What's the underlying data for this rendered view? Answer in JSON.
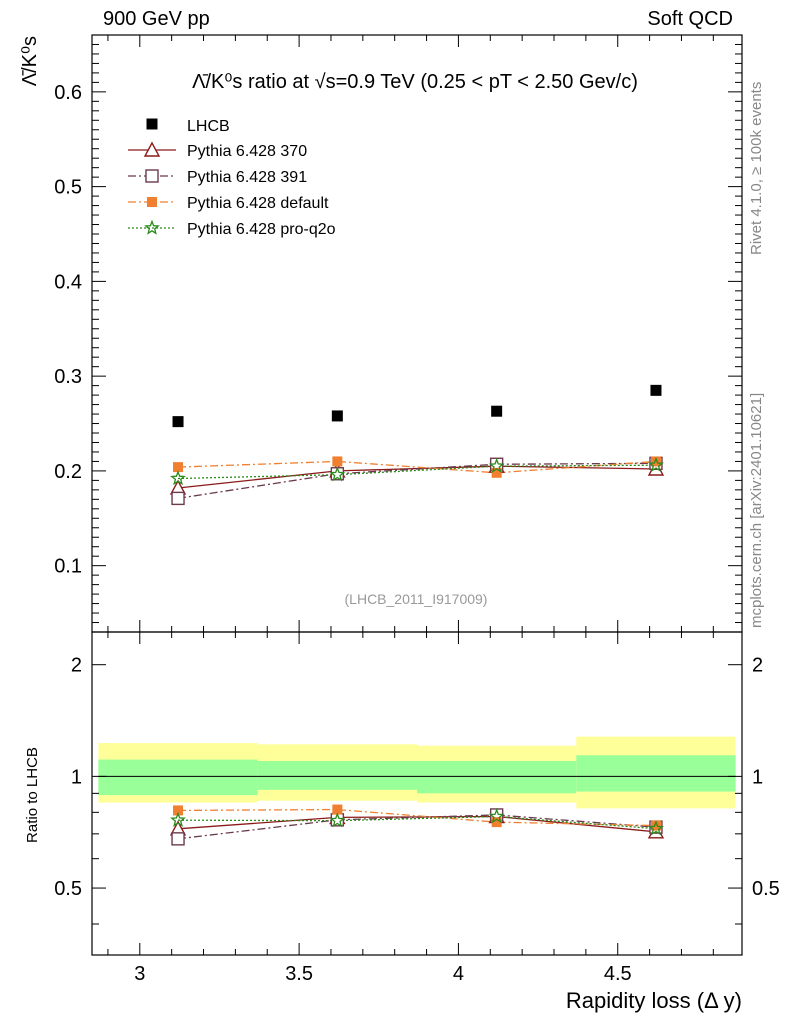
{
  "header": {
    "left": "900 GeV pp",
    "right": "Soft QCD"
  },
  "side_labels": {
    "rivet": "Rivet 4.1.0, ≥ 100k events",
    "mcplots": "mcplots.cern.ch [arXiv:2401.10621]"
  },
  "chart_data": {
    "type": "scatter",
    "title": "Λ̄/K⁰s ratio at √s=0.9 TeV (0.25 < pT < 2.50 Gev/c)",
    "analysis_tag": "(LHCB_2011_I917009)",
    "xlabel": "Rapidity loss (Δ y)",
    "ylabel": "Λ̄/K⁰s",
    "ratio_ylabel": "Ratio to LHCB",
    "xlim": [
      2.85,
      4.89
    ],
    "ylim": [
      0.03,
      0.66
    ],
    "ratio_ylim": [
      0.33,
      2.45
    ],
    "x_ticks": [
      "3",
      "3.5",
      "4",
      "4.5"
    ],
    "y_ticks": [
      "0.1",
      "0.2",
      "0.3",
      "0.4",
      "0.5",
      "0.6"
    ],
    "ratio_ticks": [
      "0.5",
      "1",
      "2"
    ],
    "x": [
      3.12,
      3.62,
      4.12,
      4.62
    ],
    "bins": [
      [
        2.87,
        3.37
      ],
      [
        3.37,
        3.87
      ],
      [
        3.87,
        4.37
      ],
      [
        4.37,
        4.87
      ]
    ],
    "reference": {
      "name": "LHCB",
      "values": [
        0.252,
        0.258,
        0.263,
        0.285
      ]
    },
    "ratio_bands": [
      {
        "inner": [
          0.89,
          1.11
        ],
        "outer": [
          0.85,
          1.23
        ]
      },
      {
        "inner": [
          0.92,
          1.1
        ],
        "outer": [
          0.86,
          1.22
        ]
      },
      {
        "inner": [
          0.9,
          1.1
        ],
        "outer": [
          0.85,
          1.21
        ]
      },
      {
        "inner": [
          0.91,
          1.14
        ],
        "outer": [
          0.82,
          1.28
        ]
      }
    ],
    "series": [
      {
        "name": "Pythia 6.428 370",
        "color": "#8b1a1a",
        "marker": "triangle",
        "dash": "",
        "values": [
          0.182,
          0.2,
          0.205,
          0.202
        ]
      },
      {
        "name": "Pythia 6.428 391",
        "color": "#6b3a4e",
        "marker": "square-open",
        "dash": "8,3,2,3",
        "values": [
          0.171,
          0.197,
          0.207,
          0.208
        ]
      },
      {
        "name": "Pythia 6.428 default",
        "color": "#f08030",
        "marker": "square-filled",
        "dash": "8,3,2,3",
        "values": [
          0.204,
          0.21,
          0.198,
          0.21
        ]
      },
      {
        "name": "Pythia 6.428 pro-q2o",
        "color": "#2a8a1a",
        "marker": "star",
        "dash": "2,2",
        "values": [
          0.192,
          0.196,
          0.205,
          0.206
        ]
      }
    ]
  }
}
